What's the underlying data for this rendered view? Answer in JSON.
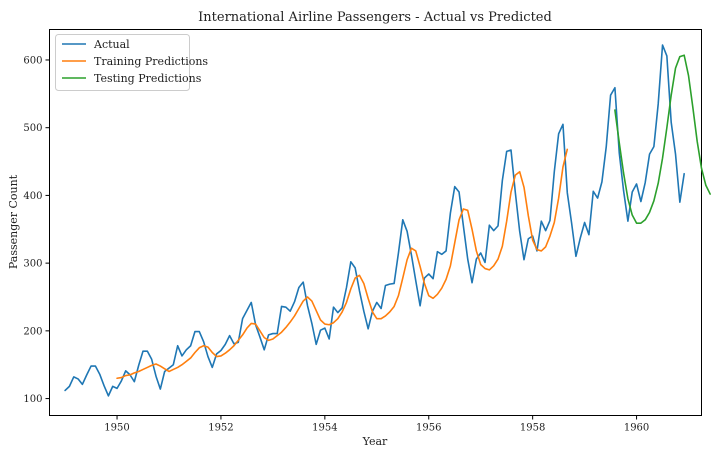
{
  "chart_data": {
    "type": "line",
    "title": "International Airline Passengers - Actual vs Predicted",
    "xlabel": "Year",
    "ylabel": "Passenger Count",
    "xlim": [
      1948.7,
      1961.25
    ],
    "ylim": [
      75,
      645
    ],
    "xticks": [
      1950,
      1952,
      1954,
      1956,
      1958,
      1960
    ],
    "yticks": [
      100,
      200,
      300,
      400,
      500,
      600
    ],
    "legend_position": "upper-left",
    "grid": false,
    "series": [
      {
        "name": "Actual",
        "color": "#1f77b4",
        "x_start": 1949.0,
        "x_step": 0.083333,
        "values": [
          112,
          118,
          132,
          129,
          121,
          135,
          148,
          148,
          136,
          119,
          104,
          118,
          115,
          126,
          141,
          135,
          125,
          149,
          170,
          170,
          158,
          133,
          114,
          140,
          145,
          150,
          178,
          163,
          172,
          178,
          199,
          199,
          184,
          162,
          146,
          166,
          171,
          180,
          193,
          181,
          183,
          218,
          230,
          242,
          209,
          191,
          172,
          194,
          196,
          196,
          236,
          235,
          229,
          243,
          264,
          272,
          237,
          211,
          180,
          201,
          204,
          188,
          235,
          227,
          234,
          264,
          302,
          293,
          259,
          229,
          203,
          229,
          242,
          233,
          267,
          269,
          270,
          315,
          364,
          347,
          312,
          274,
          237,
          278,
          284,
          277,
          317,
          313,
          318,
          374,
          413,
          405,
          355,
          306,
          271,
          306,
          315,
          301,
          356,
          348,
          355,
          422,
          465,
          467,
          404,
          347,
          305,
          336,
          340,
          318,
          362,
          348,
          363,
          435,
          491,
          505,
          404,
          359,
          310,
          337,
          360,
          342,
          406,
          396,
          420,
          472,
          548,
          559,
          463,
          407,
          362,
          405,
          417,
          391,
          419,
          461,
          472,
          535,
          622,
          606,
          508,
          461,
          390,
          432
        ]
      },
      {
        "name": "Training Predictions",
        "color": "#ff7f0e",
        "x_start": 1950.0,
        "x_step": 0.083333,
        "values": [
          130,
          131,
          134,
          135,
          138,
          140,
          143,
          146,
          149,
          151,
          148,
          144,
          140,
          143,
          146,
          150,
          155,
          160,
          168,
          175,
          178,
          176,
          168,
          162,
          163,
          167,
          172,
          178,
          186,
          194,
          204,
          211,
          210,
          200,
          190,
          186,
          188,
          193,
          198,
          205,
          213,
          222,
          233,
          244,
          250,
          244,
          230,
          216,
          210,
          209,
          212,
          218,
          228,
          242,
          262,
          278,
          282,
          270,
          248,
          228,
          218,
          218,
          222,
          228,
          236,
          252,
          278,
          305,
          322,
          318,
          295,
          270,
          252,
          248,
          254,
          263,
          276,
          296,
          330,
          364,
          380,
          378,
          350,
          318,
          298,
          292,
          290,
          296,
          306,
          325,
          362,
          405,
          430,
          435,
          412,
          370,
          334,
          320,
          318,
          324,
          340,
          360,
          396,
          442,
          468
        ]
      },
      {
        "name": "Testing Predictions",
        "color": "#2ca02c",
        "x_start": 1959.583333,
        "x_step": 0.083333,
        "values": [
          526,
          478,
          433,
          395,
          371,
          359,
          359,
          364,
          375,
          392,
          418,
          455,
          500,
          548,
          588,
          605,
          607,
          577,
          530,
          480,
          440,
          415,
          402
        ]
      }
    ]
  }
}
